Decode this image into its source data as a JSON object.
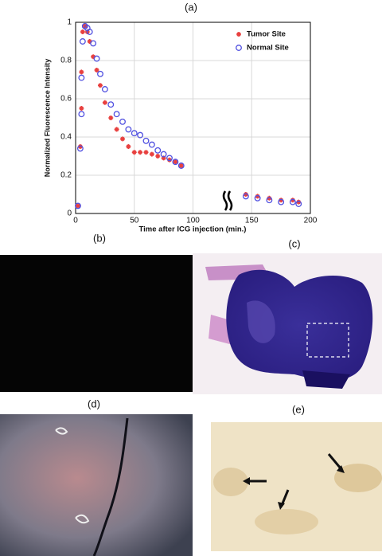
{
  "chart_data": {
    "type": "scatter",
    "title": "(a)",
    "xlabel": "Time after ICG injection (min.)",
    "ylabel": "Normalized Fluorescence Intensity",
    "x": [
      2,
      4,
      5,
      5,
      6,
      8,
      10,
      12,
      15,
      18,
      21,
      25,
      30,
      35,
      40,
      45,
      50,
      55,
      60,
      65,
      70,
      75,
      80,
      85,
      90,
      145,
      155,
      165,
      175,
      185,
      190
    ],
    "series": [
      {
        "name": "Tumor Site",
        "color": "#e8403f",
        "marker": "plus",
        "values": [
          0.04,
          0.35,
          0.55,
          0.74,
          0.95,
          0.98,
          0.95,
          0.9,
          0.82,
          0.75,
          0.67,
          0.58,
          0.5,
          0.44,
          0.39,
          0.35,
          0.32,
          0.32,
          0.32,
          0.31,
          0.3,
          0.29,
          0.28,
          0.27,
          0.25,
          0.1,
          0.09,
          0.08,
          0.07,
          0.07,
          0.06
        ]
      },
      {
        "name": "Normal Site",
        "color": "#5050e0",
        "marker": "circle",
        "values": [
          0.04,
          0.34,
          0.52,
          0.71,
          0.9,
          0.98,
          0.97,
          0.95,
          0.89,
          0.81,
          0.73,
          0.65,
          0.57,
          0.52,
          0.48,
          0.44,
          0.42,
          0.41,
          0.38,
          0.36,
          0.33,
          0.31,
          0.29,
          0.27,
          0.25,
          0.09,
          0.08,
          0.07,
          0.06,
          0.06,
          0.05
        ]
      }
    ],
    "xlim": [
      0,
      200
    ],
    "xticks": [
      0,
      50,
      100,
      150,
      200
    ],
    "ylim": [
      0,
      1
    ],
    "yticks": [
      0,
      0.2,
      0.4,
      0.6,
      0.8,
      1
    ],
    "grid": true,
    "legend": "upper right"
  },
  "panels": [
    {
      "label": "(b)"
    },
    {
      "label": "(c)"
    },
    {
      "label": "(d)"
    },
    {
      "label": "(e)"
    }
  ]
}
